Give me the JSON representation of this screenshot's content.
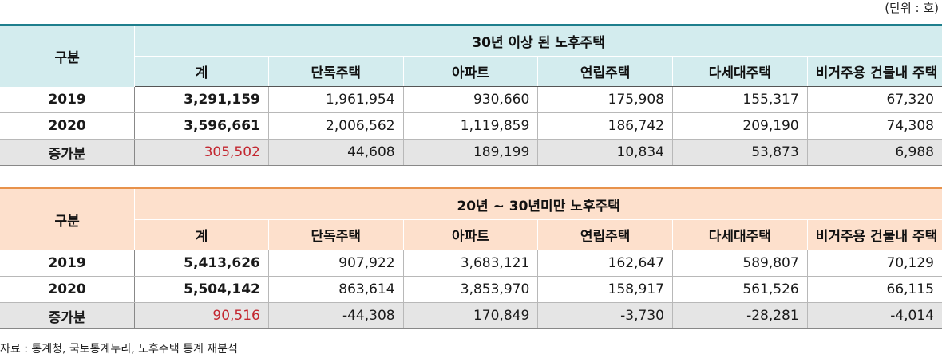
{
  "unit_label": "(단위 : 호)",
  "colors": {
    "teal_accent": "#1e7f8d",
    "teal_header": "#d3ecee",
    "orange_accent": "#e8924b",
    "orange_header": "#fde0cc",
    "increase_red": "#c3262f",
    "increase_row_bg": "#e5e5e5"
  },
  "tables": [
    {
      "row_header": "구분",
      "group_title": "30년 이상 된 노후주택",
      "columns": [
        "계",
        "단독주택",
        "아파트",
        "연립주택",
        "다세대주택",
        "비거주용 건물내 주택"
      ],
      "rows": [
        {
          "label": "2019",
          "values": [
            "3,291,159",
            "1,961,954",
            "930,660",
            "175,908",
            "155,317",
            "67,320"
          ]
        },
        {
          "label": "2020",
          "values": [
            "3,596,661",
            "2,006,562",
            "1,119,859",
            "186,742",
            "209,190",
            "74,308"
          ]
        },
        {
          "label": "증가분",
          "values": [
            "305,502",
            "44,608",
            "189,199",
            "10,834",
            "53,873",
            "6,988"
          ]
        }
      ]
    },
    {
      "row_header": "구분",
      "group_title": "20년 ~ 30년미만 노후주택",
      "columns": [
        "계",
        "단독주택",
        "아파트",
        "연립주택",
        "다세대주택",
        "비거주용 건물내 주택"
      ],
      "rows": [
        {
          "label": "2019",
          "values": [
            "5,413,626",
            "907,922",
            "3,683,121",
            "162,647",
            "589,807",
            "70,129"
          ]
        },
        {
          "label": "2020",
          "values": [
            "5,504,142",
            "863,614",
            "3,853,970",
            "158,917",
            "561,526",
            "66,115"
          ]
        },
        {
          "label": "증가분",
          "values": [
            "90,516",
            "-44,308",
            "170,849",
            "-3,730",
            "-28,281",
            "-4,014"
          ]
        }
      ]
    }
  ],
  "source": "자료 : 통계청, 국토통계누리, 노후주택 통계 재분석"
}
